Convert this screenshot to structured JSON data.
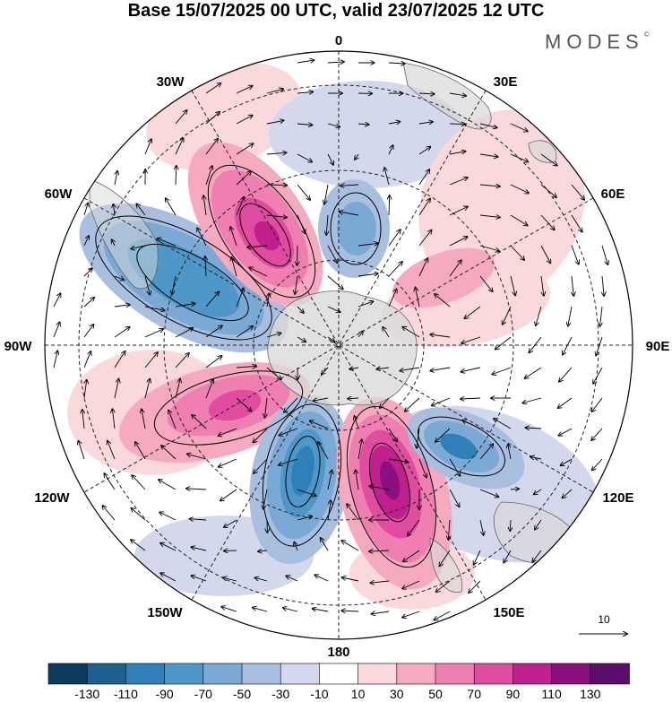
{
  "title": "Base 15/07/2025 00 UTC, valid 23/07/2025 12 UTC",
  "brand": "MODES",
  "brand_mark": "©",
  "map": {
    "projection": "south polar stereographic",
    "longitude_labels": [
      "0",
      "30E",
      "60E",
      "90E",
      "120E",
      "150E",
      "180",
      "150W",
      "120W",
      "90W",
      "60W",
      "30W"
    ],
    "reference_vector_label": "10"
  },
  "colorbar": {
    "tick_labels": [
      "-130",
      "-110",
      "-90",
      "-70",
      "-50",
      "-30",
      "-10",
      "10",
      "30",
      "50",
      "70",
      "90",
      "110",
      "130"
    ],
    "colors": [
      "#0d3b5e",
      "#1f5f8f",
      "#2f7fb8",
      "#4d97c9",
      "#7ba9d6",
      "#a9bfe0",
      "#d4d8ec",
      "#ffffff",
      "#fad9dc",
      "#f5aac0",
      "#ee7fb0",
      "#e04da0",
      "#c21f8e",
      "#8c0f80",
      "#5a0f6e"
    ]
  },
  "anomaly_colors": {
    "land": "#d9d9d9",
    "coast": "#666666"
  }
}
